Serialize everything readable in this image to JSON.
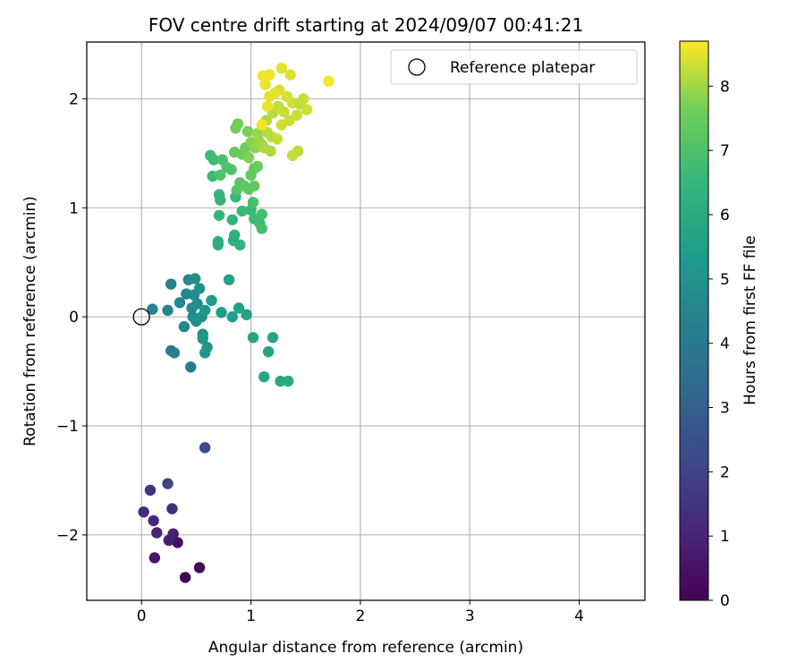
{
  "chart_data": {
    "type": "scatter",
    "title": "FOV centre drift starting at 2024/09/07 00:41:21",
    "xlabel": "Angular distance from reference (arcmin)",
    "ylabel": "Rotation from reference (arcmin)",
    "xlim": [
      -0.5,
      4.6
    ],
    "ylim": [
      -2.6,
      2.52
    ],
    "xticks": [
      0,
      1,
      2,
      3,
      4
    ],
    "xtick_labels": [
      "0",
      "1",
      "2",
      "3",
      "4"
    ],
    "yticks": [
      -2,
      -1,
      0,
      1,
      2
    ],
    "ytick_labels": [
      "−2",
      "−1",
      "0",
      "1",
      "2"
    ],
    "grid": true,
    "legend": {
      "placement": "top-right",
      "entries": [
        "Reference platepar"
      ]
    },
    "reference_point": {
      "label": "Reference platepar",
      "x": 0,
      "y": 0
    },
    "colorbar": {
      "label": "Hours from first FF file",
      "min": 0,
      "max": 8.7,
      "ticks": [
        0,
        1,
        2,
        3,
        4,
        5,
        6,
        7,
        8
      ],
      "colormap": "viridis"
    },
    "points": [
      {
        "x": 0.4,
        "y": -2.39,
        "c": 0.1
      },
      {
        "x": 0.53,
        "y": -2.3,
        "c": 0.2
      },
      {
        "x": 0.33,
        "y": -2.07,
        "c": 0.4
      },
      {
        "x": 0.12,
        "y": -2.21,
        "c": 0.6
      },
      {
        "x": 0.25,
        "y": -2.05,
        "c": 0.8
      },
      {
        "x": 0.29,
        "y": -1.99,
        "c": 0.9
      },
      {
        "x": 0.14,
        "y": -1.98,
        "c": 1.0
      },
      {
        "x": 0.11,
        "y": -1.87,
        "c": 1.1
      },
      {
        "x": 0.02,
        "y": -1.79,
        "c": 1.2
      },
      {
        "x": 0.28,
        "y": -1.76,
        "c": 1.3
      },
      {
        "x": 0.08,
        "y": -1.59,
        "c": 1.4
      },
      {
        "x": 0.24,
        "y": -1.53,
        "c": 2.0
      },
      {
        "x": 0.58,
        "y": -1.2,
        "c": 2.2
      },
      {
        "x": 0.45,
        "y": -0.46,
        "c": 4.1
      },
      {
        "x": 0.27,
        "y": -0.31,
        "c": 4.2
      },
      {
        "x": 0.3,
        "y": -0.33,
        "c": 4.25
      },
      {
        "x": 0.1,
        "y": 0.07,
        "c": 4.3
      },
      {
        "x": 0.24,
        "y": 0.06,
        "c": 4.35
      },
      {
        "x": 0.27,
        "y": 0.3,
        "c": 4.4
      },
      {
        "x": 0.39,
        "y": -0.09,
        "c": 4.45
      },
      {
        "x": 0.35,
        "y": 0.13,
        "c": 4.5
      },
      {
        "x": 0.41,
        "y": 0.21,
        "c": 4.55
      },
      {
        "x": 0.43,
        "y": 0.34,
        "c": 4.6
      },
      {
        "x": 0.46,
        "y": 0.08,
        "c": 4.65
      },
      {
        "x": 0.47,
        "y": 0.0,
        "c": 4.7
      },
      {
        "x": 0.48,
        "y": 0.2,
        "c": 4.75
      },
      {
        "x": 0.5,
        "y": -0.04,
        "c": 4.8
      },
      {
        "x": 0.51,
        "y": 0.12,
        "c": 4.85
      },
      {
        "x": 0.49,
        "y": 0.35,
        "c": 4.9
      },
      {
        "x": 0.53,
        "y": 0.26,
        "c": 4.95
      },
      {
        "x": 0.55,
        "y": 0.0,
        "c": 5.0
      },
      {
        "x": 0.56,
        "y": -0.16,
        "c": 5.05
      },
      {
        "x": 0.58,
        "y": -0.33,
        "c": 5.1
      },
      {
        "x": 0.6,
        "y": -0.28,
        "c": 5.15
      },
      {
        "x": 0.58,
        "y": 0.06,
        "c": 5.2
      },
      {
        "x": 0.64,
        "y": 0.15,
        "c": 5.25
      },
      {
        "x": 0.56,
        "y": -0.2,
        "c": 5.3
      },
      {
        "x": 0.73,
        "y": 0.04,
        "c": 5.4
      },
      {
        "x": 0.83,
        "y": 0.0,
        "c": 5.5
      },
      {
        "x": 0.89,
        "y": 0.08,
        "c": 5.55
      },
      {
        "x": 0.96,
        "y": 0.02,
        "c": 5.6
      },
      {
        "x": 0.8,
        "y": 0.34,
        "c": 5.65
      },
      {
        "x": 1.02,
        "y": -0.19,
        "c": 5.7
      },
      {
        "x": 1.16,
        "y": -0.32,
        "c": 5.75
      },
      {
        "x": 1.2,
        "y": -0.19,
        "c": 5.8
      },
      {
        "x": 1.12,
        "y": -0.55,
        "c": 5.85
      },
      {
        "x": 1.27,
        "y": -0.59,
        "c": 5.9
      },
      {
        "x": 1.34,
        "y": -0.59,
        "c": 5.95
      },
      {
        "x": 0.7,
        "y": 0.66,
        "c": 6.1
      },
      {
        "x": 0.7,
        "y": 0.69,
        "c": 6.15
      },
      {
        "x": 0.84,
        "y": 0.7,
        "c": 6.2
      },
      {
        "x": 0.85,
        "y": 0.75,
        "c": 6.25
      },
      {
        "x": 0.9,
        "y": 0.66,
        "c": 6.3
      },
      {
        "x": 0.71,
        "y": 0.93,
        "c": 6.35
      },
      {
        "x": 0.83,
        "y": 0.89,
        "c": 6.4
      },
      {
        "x": 0.71,
        "y": 1.12,
        "c": 6.45
      },
      {
        "x": 0.72,
        "y": 1.07,
        "c": 6.5
      },
      {
        "x": 0.86,
        "y": 1.1,
        "c": 6.55
      },
      {
        "x": 0.92,
        "y": 0.97,
        "c": 6.6
      },
      {
        "x": 1.0,
        "y": 0.98,
        "c": 6.65
      },
      {
        "x": 1.03,
        "y": 0.9,
        "c": 6.7
      },
      {
        "x": 1.08,
        "y": 0.86,
        "c": 6.75
      },
      {
        "x": 1.1,
        "y": 0.81,
        "c": 6.8
      },
      {
        "x": 1.1,
        "y": 0.94,
        "c": 6.85
      },
      {
        "x": 1.02,
        "y": 1.05,
        "c": 6.9
      },
      {
        "x": 0.65,
        "y": 1.29,
        "c": 6.6
      },
      {
        "x": 0.63,
        "y": 1.48,
        "c": 6.7
      },
      {
        "x": 0.66,
        "y": 1.44,
        "c": 6.75
      },
      {
        "x": 0.74,
        "y": 1.44,
        "c": 6.9
      },
      {
        "x": 0.78,
        "y": 1.37,
        "c": 7.0
      },
      {
        "x": 0.82,
        "y": 1.35,
        "c": 7.05
      },
      {
        "x": 0.72,
        "y": 1.3,
        "c": 7.1
      },
      {
        "x": 0.87,
        "y": 1.16,
        "c": 7.15
      },
      {
        "x": 0.9,
        "y": 1.23,
        "c": 7.2
      },
      {
        "x": 0.94,
        "y": 1.2,
        "c": 7.25
      },
      {
        "x": 0.98,
        "y": 1.17,
        "c": 7.3
      },
      {
        "x": 1.03,
        "y": 1.2,
        "c": 7.35
      },
      {
        "x": 1.0,
        "y": 1.3,
        "c": 7.4
      },
      {
        "x": 1.03,
        "y": 1.36,
        "c": 7.45
      },
      {
        "x": 1.06,
        "y": 1.38,
        "c": 7.5
      },
      {
        "x": 0.85,
        "y": 1.51,
        "c": 7.45
      },
      {
        "x": 0.92,
        "y": 1.49,
        "c": 7.5
      },
      {
        "x": 0.95,
        "y": 1.55,
        "c": 7.55
      },
      {
        "x": 0.88,
        "y": 1.77,
        "c": 7.6
      },
      {
        "x": 0.86,
        "y": 1.73,
        "c": 7.65
      },
      {
        "x": 0.97,
        "y": 1.7,
        "c": 7.7
      },
      {
        "x": 0.98,
        "y": 1.46,
        "c": 7.75
      },
      {
        "x": 1.0,
        "y": 1.6,
        "c": 7.8
      },
      {
        "x": 1.04,
        "y": 1.55,
        "c": 7.85
      },
      {
        "x": 1.06,
        "y": 1.68,
        "c": 7.9
      },
      {
        "x": 1.07,
        "y": 1.62,
        "c": 7.95
      },
      {
        "x": 1.1,
        "y": 1.58,
        "c": 8.0
      },
      {
        "x": 1.12,
        "y": 1.55,
        "c": 8.05
      },
      {
        "x": 1.18,
        "y": 1.52,
        "c": 8.1
      },
      {
        "x": 1.15,
        "y": 1.69,
        "c": 8.15
      },
      {
        "x": 1.19,
        "y": 1.65,
        "c": 8.2
      },
      {
        "x": 1.24,
        "y": 1.63,
        "c": 8.25
      },
      {
        "x": 1.14,
        "y": 1.8,
        "c": 8.1
      },
      {
        "x": 1.2,
        "y": 1.87,
        "c": 8.2
      },
      {
        "x": 1.25,
        "y": 1.93,
        "c": 8.25
      },
      {
        "x": 1.3,
        "y": 1.88,
        "c": 8.3
      },
      {
        "x": 1.28,
        "y": 1.76,
        "c": 8.35
      },
      {
        "x": 1.35,
        "y": 1.8,
        "c": 8.3
      },
      {
        "x": 1.38,
        "y": 1.96,
        "c": 8.35
      },
      {
        "x": 1.42,
        "y": 1.85,
        "c": 8.3
      },
      {
        "x": 1.45,
        "y": 1.95,
        "c": 8.25
      },
      {
        "x": 1.48,
        "y": 2.0,
        "c": 8.3
      },
      {
        "x": 1.51,
        "y": 1.9,
        "c": 8.35
      },
      {
        "x": 1.43,
        "y": 1.52,
        "c": 8.2
      },
      {
        "x": 1.38,
        "y": 1.48,
        "c": 8.25
      },
      {
        "x": 1.33,
        "y": 2.02,
        "c": 8.4
      },
      {
        "x": 1.26,
        "y": 2.08,
        "c": 8.45
      },
      {
        "x": 1.22,
        "y": 2.05,
        "c": 8.5
      },
      {
        "x": 1.17,
        "y": 2.02,
        "c": 8.5
      },
      {
        "x": 1.15,
        "y": 1.93,
        "c": 8.55
      },
      {
        "x": 1.13,
        "y": 2.13,
        "c": 8.55
      },
      {
        "x": 1.11,
        "y": 2.21,
        "c": 8.6
      },
      {
        "x": 1.17,
        "y": 2.22,
        "c": 8.6
      },
      {
        "x": 1.28,
        "y": 2.28,
        "c": 8.5
      },
      {
        "x": 1.36,
        "y": 2.22,
        "c": 8.45
      },
      {
        "x": 1.71,
        "y": 2.16,
        "c": 8.65
      },
      {
        "x": 1.1,
        "y": 1.76,
        "c": 8.6
      }
    ]
  }
}
